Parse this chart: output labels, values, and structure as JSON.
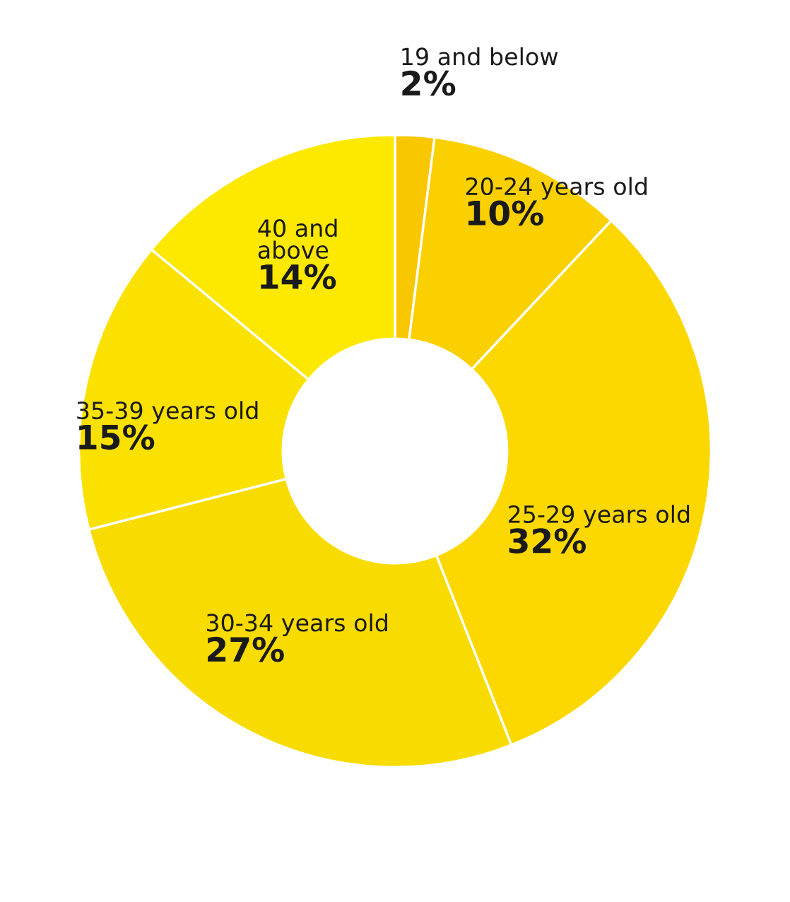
{
  "chart_data": {
    "type": "donut",
    "categories": [
      "19 and below",
      "20-24 years old",
      "25-29 years old",
      "30-34 years old",
      "35-39 years old",
      "40 and\nabove"
    ],
    "values": [
      2,
      10,
      32,
      27,
      15,
      14
    ],
    "colors": [
      "#f9c700",
      "#fbd000",
      "#fdd800",
      "#f8db00",
      "#fbe100",
      "#fde800"
    ],
    "value_labels": [
      "2%",
      "10%",
      "32%",
      "27%",
      "15%",
      "14%"
    ]
  }
}
